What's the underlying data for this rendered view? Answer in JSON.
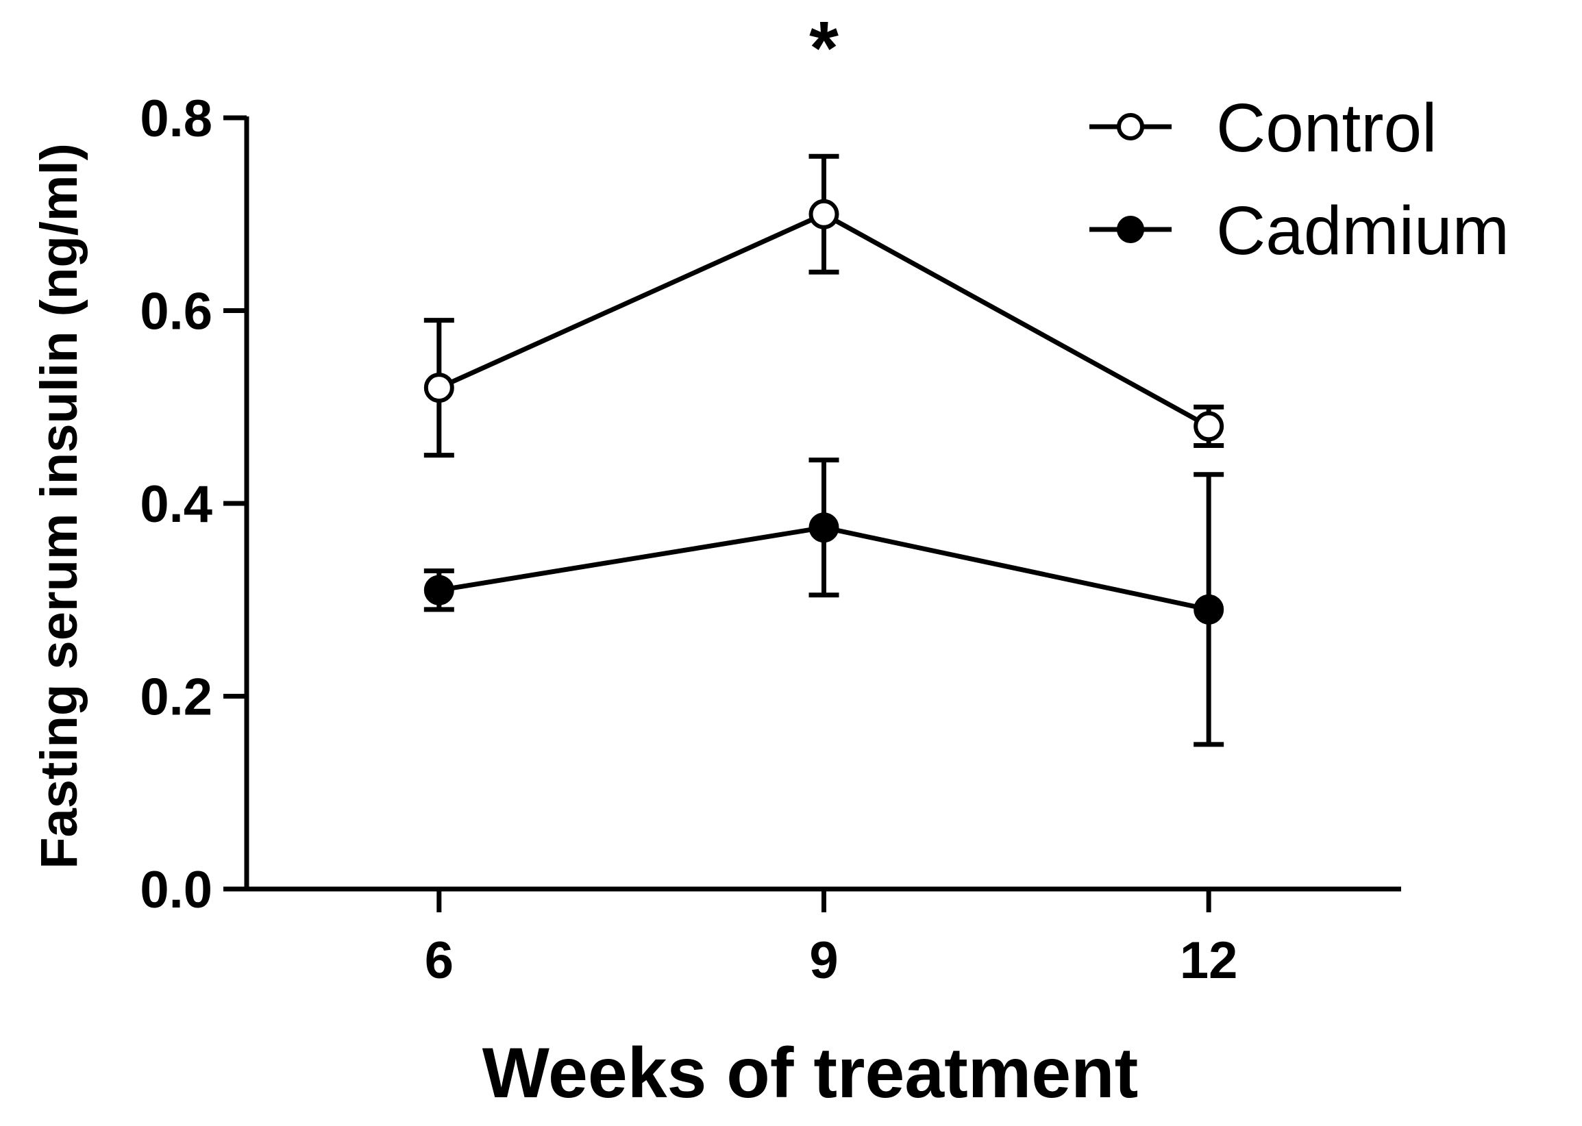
{
  "chart_data": {
    "type": "line",
    "title": "",
    "xlabel": "Weeks of treatment",
    "ylabel": "Fasting serum insulin (ng/ml)",
    "x": [
      6,
      9,
      12
    ],
    "x_tick_labels": [
      "6",
      "9",
      "12"
    ],
    "xlim": [
      4.5,
      13.5
    ],
    "ylim": [
      0.0,
      0.8
    ],
    "y_ticks": [
      0.0,
      0.2,
      0.4,
      0.6,
      0.8
    ],
    "y_tick_labels": [
      "0.0",
      "0.2",
      "0.4",
      "0.6",
      "0.8"
    ],
    "grid": false,
    "legend_position": "top-right",
    "series": [
      {
        "name": "Control",
        "marker": "open-circle",
        "color": "#000000",
        "values": [
          0.52,
          0.7,
          0.48
        ],
        "error": [
          0.07,
          0.06,
          0.02
        ]
      },
      {
        "name": "Cadmium",
        "marker": "filled-circle",
        "color": "#000000",
        "values": [
          0.31,
          0.375,
          0.29
        ],
        "error": [
          0.02,
          0.07,
          0.14
        ]
      }
    ],
    "annotations": [
      {
        "text": "*",
        "x": 9,
        "y": 0.8
      }
    ]
  }
}
